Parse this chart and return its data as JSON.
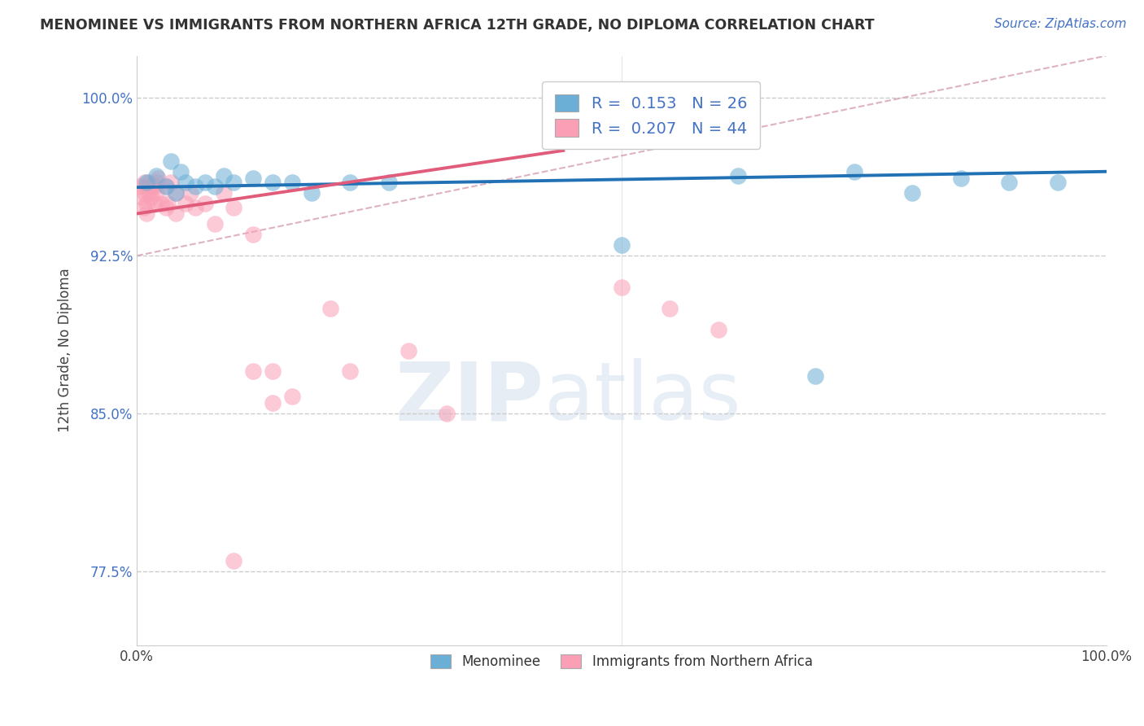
{
  "title": "MENOMINEE VS IMMIGRANTS FROM NORTHERN AFRICA 12TH GRADE, NO DIPLOMA CORRELATION CHART",
  "source_text": "Source: ZipAtlas.com",
  "ylabel": "12th Grade, No Diploma",
  "xlabel": "",
  "xlim": [
    0.0,
    1.0
  ],
  "ylim": [
    0.74,
    1.02
  ],
  "yticks": [
    0.775,
    0.85,
    0.925,
    1.0
  ],
  "ytick_labels": [
    "77.5%",
    "85.0%",
    "92.5%",
    "100.0%"
  ],
  "xticks": [
    0.0,
    0.25,
    0.5,
    0.75,
    1.0
  ],
  "xtick_labels": [
    "0.0%",
    "",
    "",
    "",
    "100.0%"
  ],
  "legend_blue_label": "R =  0.153   N = 26",
  "legend_pink_label": "R =  0.207   N = 44",
  "legend_bottom_blue": "Menominee",
  "legend_bottom_pink": "Immigrants from Northern Africa",
  "blue_color": "#6baed6",
  "pink_color": "#fa9fb5",
  "blue_line_color": "#2171b5",
  "pink_line_color": "#e05c7a",
  "dashed_line_color": "#d4a0b0",
  "R_blue": 0.153,
  "N_blue": 26,
  "R_pink": 0.207,
  "N_pink": 44,
  "blue_x": [
    0.01,
    0.02,
    0.03,
    0.035,
    0.04,
    0.045,
    0.05,
    0.06,
    0.07,
    0.08,
    0.09,
    0.1,
    0.12,
    0.14,
    0.16,
    0.18,
    0.22,
    0.26,
    0.5,
    0.62,
    0.7,
    0.74,
    0.8,
    0.85,
    0.9,
    0.95
  ],
  "blue_y": [
    0.96,
    0.963,
    0.958,
    0.97,
    0.955,
    0.965,
    0.96,
    0.958,
    0.96,
    0.958,
    0.963,
    0.96,
    0.962,
    0.96,
    0.96,
    0.955,
    0.96,
    0.96,
    0.93,
    0.963,
    0.868,
    0.965,
    0.955,
    0.962,
    0.96,
    0.96
  ],
  "pink_x": [
    0.003,
    0.005,
    0.007,
    0.008,
    0.008,
    0.01,
    0.01,
    0.01,
    0.012,
    0.012,
    0.015,
    0.015,
    0.018,
    0.018,
    0.02,
    0.02,
    0.022,
    0.025,
    0.03,
    0.03,
    0.032,
    0.035,
    0.04,
    0.04,
    0.05,
    0.055,
    0.06,
    0.07,
    0.08,
    0.09,
    0.1,
    0.12,
    0.14,
    0.16,
    0.2,
    0.22,
    0.28,
    0.32,
    0.14,
    0.5,
    0.55,
    0.6,
    0.12,
    0.1
  ],
  "pink_y": [
    0.958,
    0.953,
    0.948,
    0.96,
    0.955,
    0.958,
    0.95,
    0.945,
    0.96,
    0.955,
    0.958,
    0.953,
    0.958,
    0.95,
    0.96,
    0.955,
    0.962,
    0.95,
    0.958,
    0.948,
    0.95,
    0.96,
    0.955,
    0.945,
    0.95,
    0.955,
    0.948,
    0.95,
    0.94,
    0.955,
    0.948,
    0.935,
    0.87,
    0.858,
    0.9,
    0.87,
    0.88,
    0.85,
    0.855,
    0.91,
    0.9,
    0.89,
    0.87,
    0.78
  ],
  "watermark_text": "ZIPatlas",
  "background_color": "#ffffff",
  "grid_color": "#cccccc"
}
